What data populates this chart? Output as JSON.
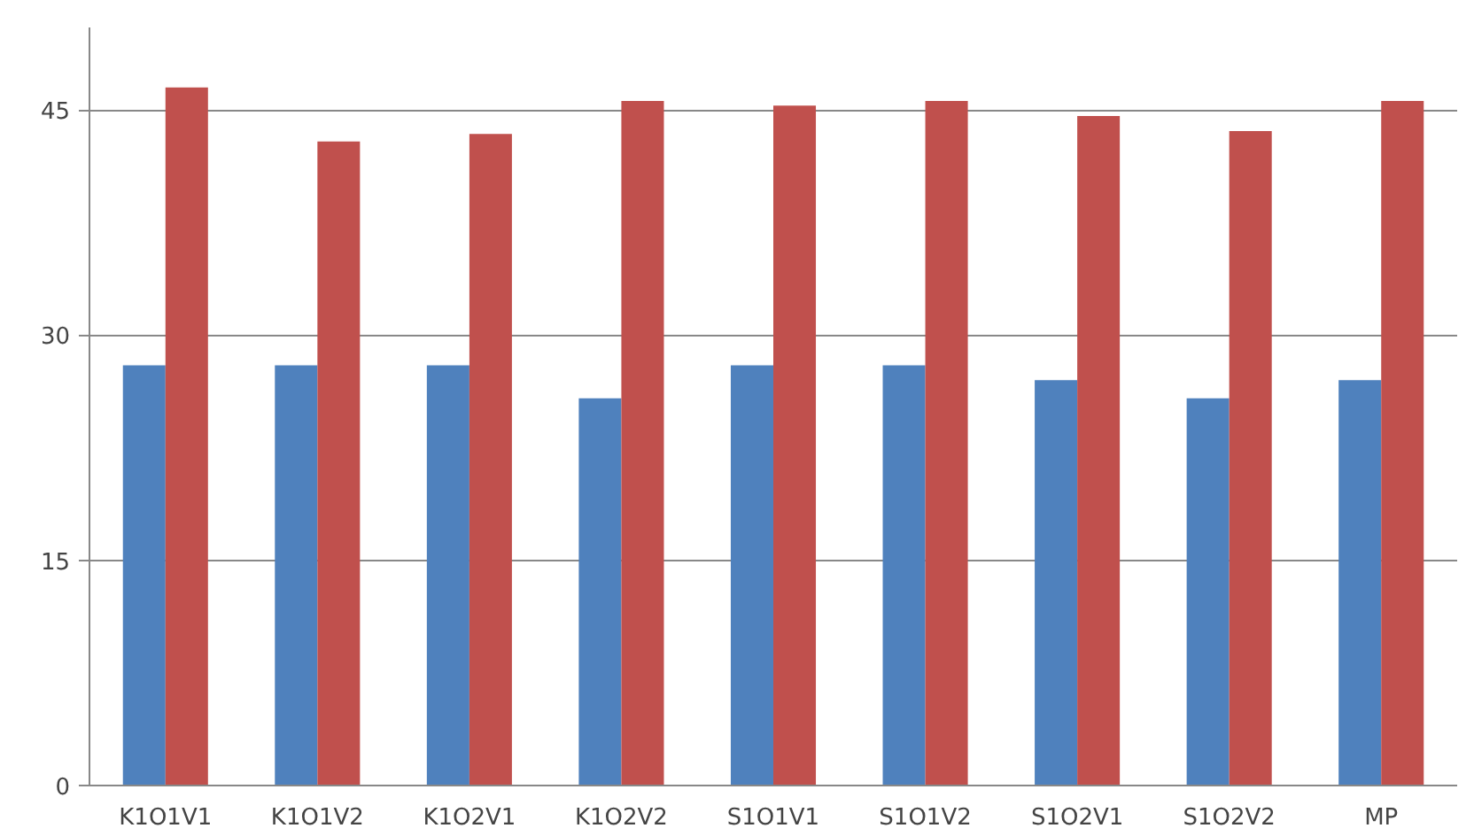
{
  "chart_data": {
    "type": "bar",
    "categories": [
      "K1O1V1",
      "K1O1V2",
      "K1O2V1",
      "K1O2V2",
      "S1O1V1",
      "S1O1V2",
      "S1O2V1",
      "S1O2V2",
      "MP"
    ],
    "series": [
      {
        "color": "#4f81bd",
        "values": [
          28,
          28,
          28,
          25.8,
          28,
          28,
          27,
          25.8,
          27
        ]
      },
      {
        "color": "#c0504d",
        "values": [
          46.5,
          42.9,
          43.4,
          45.6,
          45.3,
          45.6,
          44.6,
          43.6,
          45.6
        ]
      }
    ],
    "ylim": [
      0,
      50.5
    ],
    "yticks": [
      0,
      15,
      30,
      45
    ],
    "grid": "y"
  }
}
